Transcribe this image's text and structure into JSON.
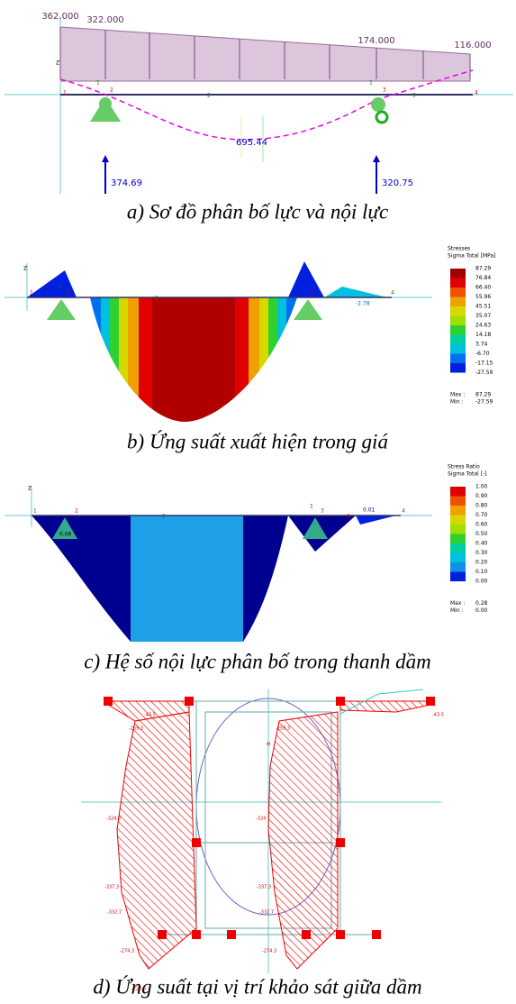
{
  "panel_a": {
    "axis": "Z",
    "loads": [
      "362.000",
      "322.000",
      "174.000",
      "116.000"
    ],
    "moment": "695.44",
    "reactions": [
      "374.69",
      "320.75"
    ],
    "nodes": [
      "1",
      "2",
      "1",
      "2",
      "1",
      "3",
      "3",
      "4"
    ],
    "caption": "a) Sơ đồ phân bố lực và nội lực"
  },
  "panel_b": {
    "axis": "Z",
    "labels": [
      "-2.78"
    ],
    "nodes": [
      "1",
      "1",
      "2",
      "2",
      "3",
      "4"
    ],
    "legend": {
      "title": "Stresses",
      "subtitle": "Sigma Total [MPa]",
      "values": [
        "87.29",
        "76.84",
        "66.40",
        "55.96",
        "45.51",
        "35.07",
        "24.63",
        "14.18",
        "3.74",
        "-6.70",
        "-17.15",
        "-27.59"
      ],
      "colors": [
        "#a00000",
        "#e00000",
        "#f05000",
        "#f0a000",
        "#d8d800",
        "#a0e000",
        "#30d030",
        "#00d0a0",
        "#00c0e0",
        "#0070f0",
        "#0020e0",
        "#000090"
      ],
      "max_label": "Max :",
      "max": "87.29",
      "min_label": "Min :",
      "min": "-27.59"
    },
    "caption": "b) Ứng suất xuất hiện trong giá"
  },
  "panel_c": {
    "axis": "Z",
    "labels": [
      "0.06",
      "0.01"
    ],
    "nodes": [
      "1",
      "2",
      "2",
      "1",
      "3",
      "3",
      "4"
    ],
    "legend": {
      "title": "Stress Ratio",
      "subtitle": "Sigma Total [-]",
      "values": [
        "1.00",
        "0.90",
        "0.80",
        "0.70",
        "0.60",
        "0.50",
        "0.40",
        "0.30",
        "0.20",
        "0.10",
        "0.00"
      ],
      "colors": [
        "#e00000",
        "#f05000",
        "#f0a000",
        "#d8d800",
        "#a0e000",
        "#30d030",
        "#00d0a0",
        "#00c0e0",
        "#1090e8",
        "#0020e0",
        "#000090"
      ],
      "max_label": "Max :",
      "max": "0.28",
      "min_label": "Min :",
      "min": "0.00"
    },
    "caption": "c) Hệ số nội lực phân bố trong thanh dầm"
  },
  "panel_d": {
    "labels": [
      "-43.5",
      "-259.3",
      "-324.0",
      "-337.3",
      "-332.7",
      "-274.3",
      "-222.4",
      "-259.3",
      "-324",
      "-337.3",
      "-332.7",
      "-274.3",
      "-43.5",
      "M"
    ],
    "caption": "d) Ứng suất tại vị trí khảo sát giữa dầm"
  }
}
